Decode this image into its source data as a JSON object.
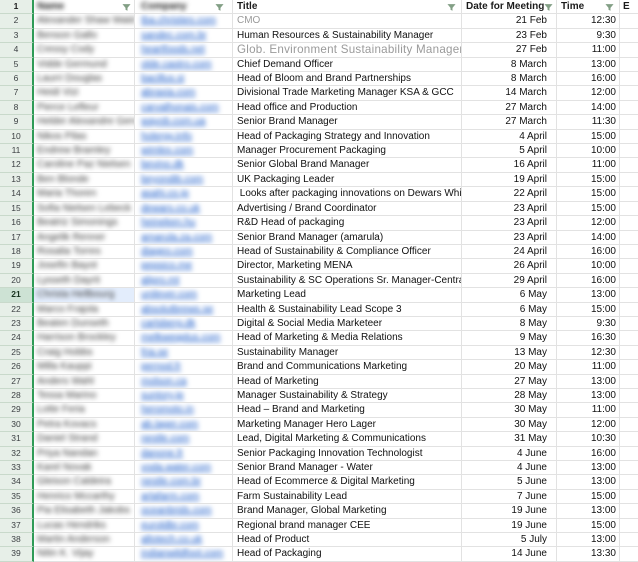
{
  "sheet": {
    "type": "spreadsheet-grid",
    "first_row_number": 1,
    "last_row_number": 39,
    "colors": {
      "row_header_bg": "#e7efe8",
      "row_header_selected_bg": "#cde2d4",
      "frozen_border_green": "#2f9b57",
      "gridline": "#e2e2e2",
      "link_blue": "#1457c8",
      "muted_text": "#9a9a9a",
      "filter_icon_green": "#6d8f70",
      "selection_blue_bg": "#e3edfc"
    }
  },
  "header": {
    "columns": [
      {
        "key": "name",
        "label": "Name",
        "blurred": true
      },
      {
        "key": "company",
        "label": "Company",
        "blurred": true
      },
      {
        "key": "title",
        "label": "Title",
        "blurred": false
      },
      {
        "key": "date",
        "label": "Date for Meeting",
        "blurred": false
      },
      {
        "key": "time",
        "label": "Time",
        "blurred": false
      }
    ],
    "next_column_partial": "E",
    "filter_icon": "funnel-icon"
  },
  "rows": [
    {
      "n": 2,
      "name": "Alexander Shaw Wald",
      "company": "tba.christies.com",
      "title": "CMO",
      "date": "21 Feb",
      "time": "12:30",
      "muted": true
    },
    {
      "n": 3,
      "name": "Benson Gallo",
      "company": "sandec.com.br",
      "title": "Human Resources & Sustainability Manager",
      "date": "23 Feb",
      "time": "9:30"
    },
    {
      "n": 4,
      "name": "Cressy Cody",
      "company": "heartfoods.net",
      "title": "Glob. Environment Sustainability Manager",
      "date": "27 Feb",
      "time": "11:00",
      "muted": true,
      "large": true
    },
    {
      "n": 5,
      "name": "Vidde Germund",
      "company": "olde.castro.com",
      "title": "Chief Demand Officer",
      "date": "8 March",
      "time": "13:00"
    },
    {
      "n": 6,
      "name": "Laurri Douglas",
      "company": "bacillus.si",
      "title": "Head of Bloom and Brand Partnerships",
      "date": "8 March",
      "time": "16:00"
    },
    {
      "n": 7,
      "name": "Heidi Vizi",
      "company": "abraxia.com",
      "title": "Divisional Trade Marketing Manager KSA & GCC",
      "date": "14 March",
      "time": "12:00"
    },
    {
      "n": 8,
      "name": "Pierce Lefleur",
      "company": "carvalhonais.com",
      "title": "Head office and Production",
      "date": "27 March",
      "time": "14:00"
    },
    {
      "n": 9,
      "name": "Helder Alexandre Gervas",
      "company": "wayob.com.ua",
      "title": "Senior Brand Manager",
      "date": "27 March",
      "time": "11:30"
    },
    {
      "n": 10,
      "name": "Nikos Pilas",
      "company": "holergy.info",
      "title": "Head of Packaging Strategy and Innovation",
      "date": "4 April",
      "time": "15:00"
    },
    {
      "n": 11,
      "name": "Endrew Bramley",
      "company": "wimlex.com",
      "title": "Manager Procurement Packaging",
      "date": "5 April",
      "time": "10:00"
    },
    {
      "n": 12,
      "name": "Caroline Paz Nielsen",
      "company": "bevino.dk",
      "title": "Senior Global Brand Manager",
      "date": "16 April",
      "time": "11:00"
    },
    {
      "n": 13,
      "name": "Ben Blonde",
      "company": "beyondib.com",
      "title": "UK Packaging Leader",
      "date": "19 April",
      "time": "15:00"
    },
    {
      "n": 14,
      "name": "Maria Thoren",
      "company": "asahi.co.jp",
      "title": " Looks after packaging innovations on Dewars Whisky",
      "date": "22 April",
      "time": "15:00"
    },
    {
      "n": 15,
      "name": "Sofia Nielsen Lebeck",
      "company": "dewars.co.uk",
      "title": "Advertising / Brand Coordinator",
      "date": "23 April",
      "time": "15:00"
    },
    {
      "n": 16,
      "name": "Beatriz Simonings",
      "company": "heineken.hu",
      "title": "R&D Head of packaging",
      "date": "23 April",
      "time": "12:00"
    },
    {
      "n": 17,
      "name": "Angelik Renner",
      "company": "amarula.za.com",
      "title": "Senior Brand Manager (amarula)",
      "date": "23 April",
      "time": "14:00"
    },
    {
      "n": 18,
      "name": "Rosalia Torres",
      "company": "diageo.com",
      "title": "Head of Sustainability & Compliance Officer",
      "date": "24 April",
      "time": "16:00"
    },
    {
      "n": 19,
      "name": "Josefin Bayot",
      "company": "pepsico.me",
      "title": "Director, Marketing MENA",
      "date": "26 April",
      "time": "10:00"
    },
    {
      "n": 20,
      "name": "Lysseth Dayrit",
      "company": "alipro.mt",
      "title": "Sustainability & SC Operations Sr. Manager-Central Europ",
      "date": "29 April",
      "time": "16:00"
    },
    {
      "n": 21,
      "name": "Christa Hellbourg",
      "company": "unilever.com",
      "title": "Marketing Lead",
      "date": "6 May",
      "time": "13:00",
      "selected": true
    },
    {
      "n": 22,
      "name": "Marco Frajola",
      "company": "absolutbrews.se",
      "title": "Health & Sustainability Lead Scope 3",
      "date": "6 May",
      "time": "15:00"
    },
    {
      "n": 23,
      "name": "Beaten Dunseth",
      "company": "carlsberg.dk",
      "title": "Digital & Social Media Marketeer",
      "date": "8 May",
      "time": "9:30"
    },
    {
      "n": 24,
      "name": "Harrison Brockley",
      "company": "melkwegplus.com",
      "title": "Head of Marketing & Media Relations",
      "date": "9 May",
      "time": "16:30"
    },
    {
      "n": 25,
      "name": "Craig Hobbs",
      "company": "fria.se",
      "title": "Sustainability Manager",
      "date": "13 May",
      "time": "12:30"
    },
    {
      "n": 26,
      "name": "Milla Kauppi",
      "company": "pernod.fr",
      "title": "Brand and Communications Marketing",
      "date": "20 May",
      "time": "11:00"
    },
    {
      "n": 27,
      "name": "Anders Wahl",
      "company": "molson.ca",
      "title": "Head of Marketing",
      "date": "27 May",
      "time": "13:00"
    },
    {
      "n": 28,
      "name": "Tessa Marino",
      "company": "suntory.jp",
      "title": "Manager Sustainability & Strategy",
      "date": "28 May",
      "time": "13:00"
    },
    {
      "n": 29,
      "name": "Lotte Feria",
      "company": "heromoto.in",
      "title": "Head – Brand and Marketing",
      "date": "30 May",
      "time": "11:00"
    },
    {
      "n": 30,
      "name": "Petra Kovacs",
      "company": "ab.lager.com",
      "title": "Marketing Manager Hero Lager",
      "date": "30 May",
      "time": "12:00"
    },
    {
      "n": 31,
      "name": "Daniel Strand",
      "company": "nestle.com",
      "title": "Lead, Digital Marketing & Communications",
      "date": "31 May",
      "time": "10:30"
    },
    {
      "n": 32,
      "name": "Priya Nandan",
      "company": "danone.fr",
      "title": "Senior Packaging Innovation Technologist",
      "date": "4 June",
      "time": "16:00"
    },
    {
      "n": 33,
      "name": "Karel Novak",
      "company": "voda.water.com",
      "title": "Senior Brand Manager - Water",
      "date": "4 June",
      "time": "13:00"
    },
    {
      "n": 34,
      "name": "Gleison Caldeira",
      "company": "nestle.com.br",
      "title": "Head of Ecommerce & Digital Marketing",
      "date": "5 June",
      "time": "13:00"
    },
    {
      "n": 35,
      "name": "Henrico Mccarthy",
      "company": "arlafarm.com",
      "title": "Farm Sustainability Lead",
      "date": "7 June",
      "time": "15:00"
    },
    {
      "n": 36,
      "name": "Pia Elisabeth Jakobs",
      "company": "oceanbrids.com",
      "title": "Brand Manager, Global Marketing",
      "date": "19 June",
      "time": "13:00"
    },
    {
      "n": 37,
      "name": "Lucas Hendriks",
      "company": "euroldbr.com",
      "title": "Regional brand manager CEE",
      "date": "19 June",
      "time": "15:00"
    },
    {
      "n": 38,
      "name": "Martin Anderson",
      "company": "allotech.co.uk",
      "title": "Head of Product",
      "date": "5 July",
      "time": "13:00"
    },
    {
      "n": 39,
      "name": "Nitin K. Vijay",
      "company": "indianwildfoot.com",
      "title": "Head of Packaging",
      "date": "14 June",
      "time": "13:30"
    }
  ]
}
